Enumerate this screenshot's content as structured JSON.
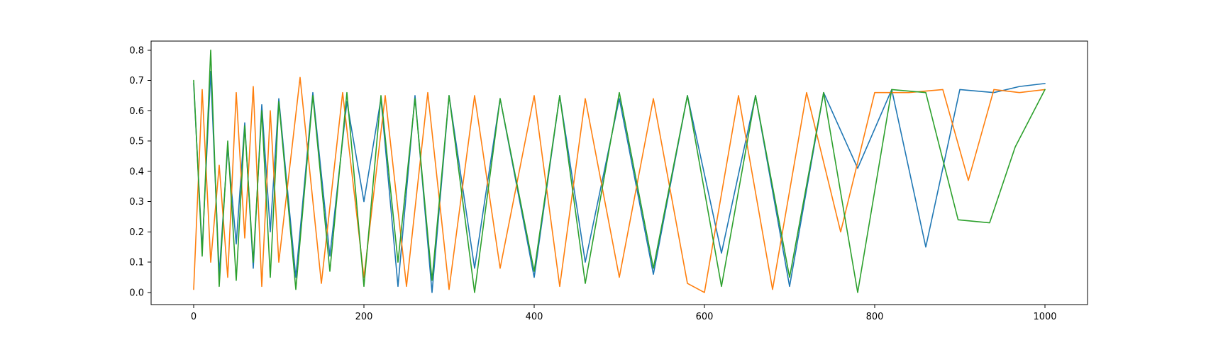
{
  "chart_data": {
    "type": "line",
    "title": "",
    "xlabel": "",
    "ylabel": "",
    "xlim": [
      -50,
      1050
    ],
    "ylim": [
      -0.04,
      0.83
    ],
    "x_ticks": [
      0,
      200,
      400,
      600,
      800,
      1000
    ],
    "x_tick_labels": [
      "0",
      "200",
      "400",
      "600",
      "800",
      "1000"
    ],
    "y_ticks": [
      0.0,
      0.1,
      0.2,
      0.3,
      0.4,
      0.5,
      0.6,
      0.7,
      0.8
    ],
    "y_tick_labels": [
      "0.0",
      "0.1",
      "0.2",
      "0.3",
      "0.4",
      "0.5",
      "0.6",
      "0.7",
      "0.8"
    ],
    "grid": false,
    "legend": "none",
    "series": [
      {
        "color": "#1f77b4",
        "x": [
          0,
          10,
          20,
          30,
          40,
          50,
          60,
          70,
          80,
          90,
          100,
          120,
          140,
          160,
          180,
          200,
          220,
          240,
          260,
          280,
          300,
          330,
          360,
          400,
          430,
          460,
          500,
          540,
          580,
          620,
          660,
          700,
          740,
          780,
          820,
          860,
          900,
          940,
          970,
          1000
        ],
        "values": [
          0.69,
          0.14,
          0.73,
          0.06,
          0.48,
          0.16,
          0.56,
          0.08,
          0.62,
          0.2,
          0.64,
          0.05,
          0.66,
          0.12,
          0.63,
          0.3,
          0.64,
          0.02,
          0.65,
          0.0,
          0.65,
          0.08,
          0.64,
          0.05,
          0.65,
          0.1,
          0.64,
          0.06,
          0.65,
          0.13,
          0.65,
          0.02,
          0.66,
          0.41,
          0.67,
          0.15,
          0.67,
          0.66,
          0.68,
          0.69
        ]
      },
      {
        "color": "#ff7f0e",
        "x": [
          0,
          10,
          20,
          30,
          40,
          50,
          60,
          70,
          80,
          90,
          100,
          125,
          150,
          175,
          200,
          225,
          250,
          275,
          300,
          330,
          360,
          400,
          430,
          460,
          500,
          540,
          580,
          600,
          640,
          680,
          720,
          760,
          800,
          840,
          880,
          910,
          940,
          970,
          1000
        ],
        "values": [
          0.01,
          0.67,
          0.1,
          0.42,
          0.05,
          0.66,
          0.18,
          0.68,
          0.02,
          0.6,
          0.1,
          0.71,
          0.03,
          0.66,
          0.05,
          0.65,
          0.02,
          0.66,
          0.01,
          0.65,
          0.08,
          0.65,
          0.02,
          0.64,
          0.05,
          0.64,
          0.03,
          0.0,
          0.65,
          0.01,
          0.66,
          0.2,
          0.66,
          0.66,
          0.67,
          0.37,
          0.67,
          0.66,
          0.67
        ]
      },
      {
        "color": "#2ca02c",
        "x": [
          0,
          10,
          20,
          30,
          40,
          50,
          60,
          70,
          80,
          90,
          100,
          120,
          140,
          160,
          180,
          200,
          220,
          240,
          260,
          280,
          300,
          330,
          360,
          400,
          430,
          460,
          500,
          540,
          580,
          620,
          660,
          700,
          740,
          780,
          820,
          860,
          898,
          935,
          965,
          1000
        ],
        "values": [
          0.7,
          0.12,
          0.8,
          0.02,
          0.5,
          0.04,
          0.55,
          0.1,
          0.6,
          0.05,
          0.63,
          0.01,
          0.65,
          0.07,
          0.66,
          0.02,
          0.65,
          0.1,
          0.64,
          0.04,
          0.65,
          0.0,
          0.64,
          0.07,
          0.65,
          0.03,
          0.66,
          0.08,
          0.65,
          0.02,
          0.65,
          0.05,
          0.66,
          0.0,
          0.67,
          0.66,
          0.24,
          0.23,
          0.48,
          0.67
        ]
      }
    ]
  }
}
